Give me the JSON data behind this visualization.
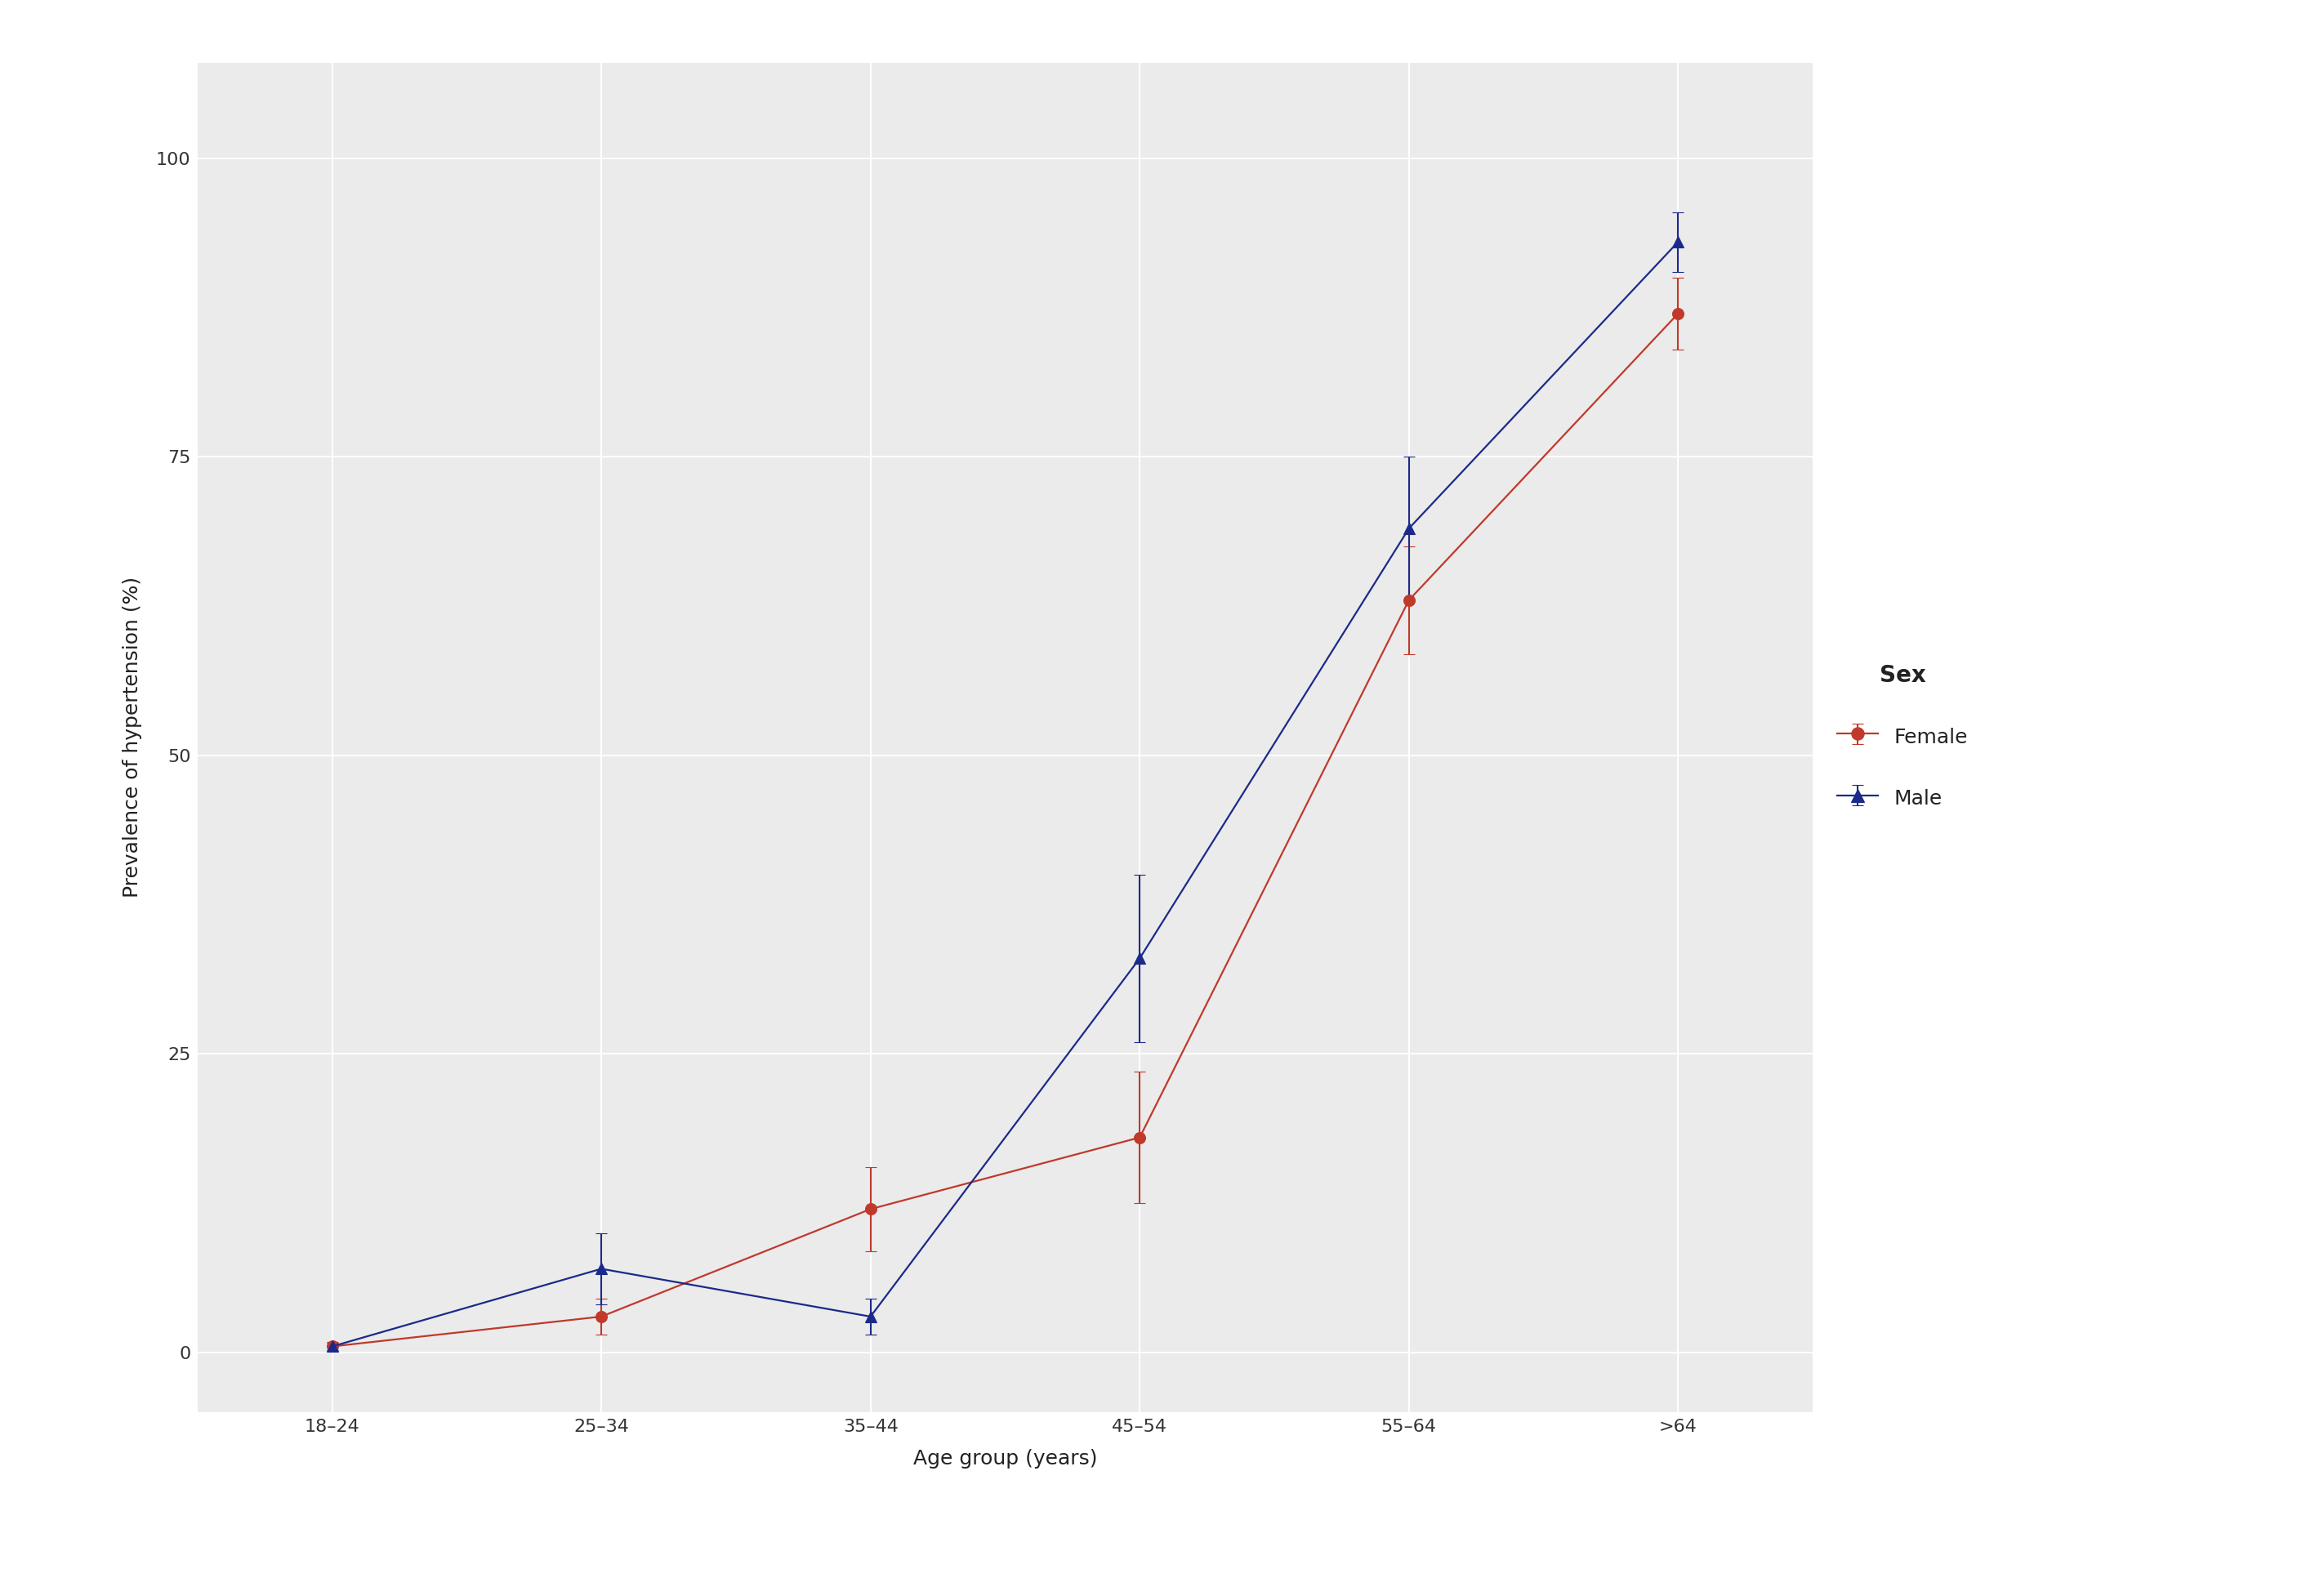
{
  "categories": [
    "18–24",
    "25–34",
    "35–44",
    "45–54",
    "55–64",
    ">64"
  ],
  "female_y": [
    0.5,
    3.0,
    12.0,
    18.0,
    63.0,
    87.0
  ],
  "female_yerr_low": [
    0.4,
    1.5,
    3.5,
    5.5,
    4.5,
    3.0
  ],
  "female_yerr_high": [
    0.4,
    1.5,
    3.5,
    5.5,
    4.5,
    3.0
  ],
  "male_y": [
    0.5,
    7.0,
    3.0,
    33.0,
    69.0,
    93.0
  ],
  "male_yerr_low": [
    0.3,
    3.0,
    1.5,
    7.0,
    6.0,
    2.5
  ],
  "male_yerr_high": [
    0.3,
    3.0,
    1.5,
    7.0,
    6.0,
    2.5
  ],
  "female_color": "#C0392B",
  "male_color": "#1B2A8A",
  "xlabel": "Age group (years)",
  "ylabel": "Prevalence of hypertension (%)",
  "legend_title": "Sex",
  "legend_female": "Female",
  "legend_male": "Male",
  "ylim": [
    -5,
    108
  ],
  "yticks": [
    0,
    25,
    50,
    75,
    100
  ],
  "background_color": "#FFFFFF",
  "panel_color": "#EBEBEB",
  "grid_color": "#FFFFFF",
  "axis_label_fontsize": 18,
  "tick_fontsize": 16,
  "legend_fontsize": 18,
  "legend_title_fontsize": 20,
  "marker_size": 10,
  "line_width": 1.6,
  "cap_size": 5,
  "cap_thick": 1.5,
  "elinewidth": 1.5
}
